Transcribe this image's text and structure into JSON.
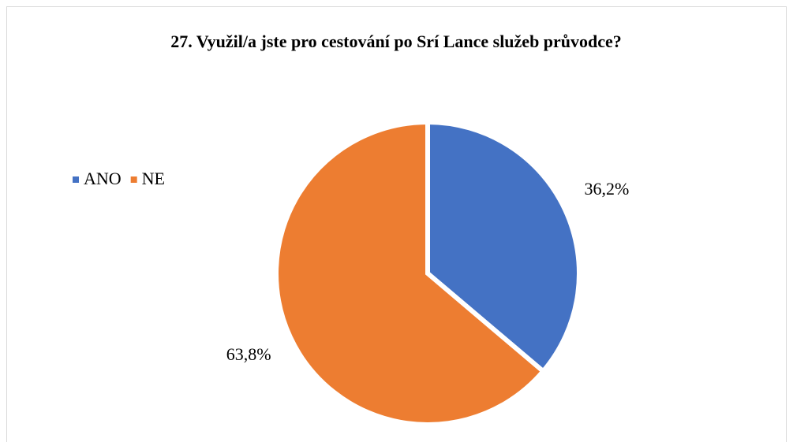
{
  "chart_data": {
    "type": "pie",
    "title": "27. Využil/a jste pro cestování po Srí Lance služeb průvodce?",
    "categories": [
      "ANO",
      "NE"
    ],
    "values": [
      36.2,
      63.8
    ],
    "value_labels": [
      "36,2%",
      "63,8%"
    ],
    "colors": [
      "#4472c4",
      "#ed7d31"
    ],
    "legend": "left"
  }
}
